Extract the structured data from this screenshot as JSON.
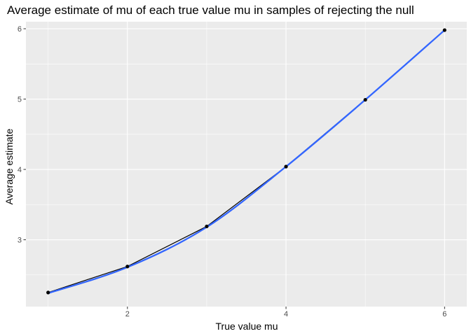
{
  "chart_data": {
    "type": "line",
    "title": "Average estimate of mu of each true value mu in samples of rejecting the null",
    "xlabel": "True value mu",
    "ylabel": "Average estimate",
    "xlim": [
      0.72,
      6.28
    ],
    "ylim": [
      2.05,
      6.1
    ],
    "x_ticks": [
      2,
      4,
      6
    ],
    "x_minor_ticks": [
      1,
      3,
      5
    ],
    "y_ticks": [
      3,
      4,
      5,
      6
    ],
    "y_minor_ticks": [
      2.5,
      3.5,
      4.5,
      5.5
    ],
    "grid": true,
    "legend": "none",
    "series": [
      {
        "kind": "points-and-line",
        "color": "#000000",
        "x": [
          1,
          2,
          3,
          4,
          5,
          6
        ],
        "y": [
          2.25,
          2.62,
          3.19,
          4.04,
          4.99,
          5.98
        ]
      },
      {
        "kind": "smooth",
        "color": "#3366FF",
        "x": [
          1,
          2,
          3,
          4,
          5,
          6
        ],
        "y": [
          2.24,
          2.61,
          3.18,
          4.04,
          4.99,
          5.98
        ]
      }
    ],
    "panel_background": "#EBEBEB",
    "grid_color": "#FFFFFF"
  }
}
